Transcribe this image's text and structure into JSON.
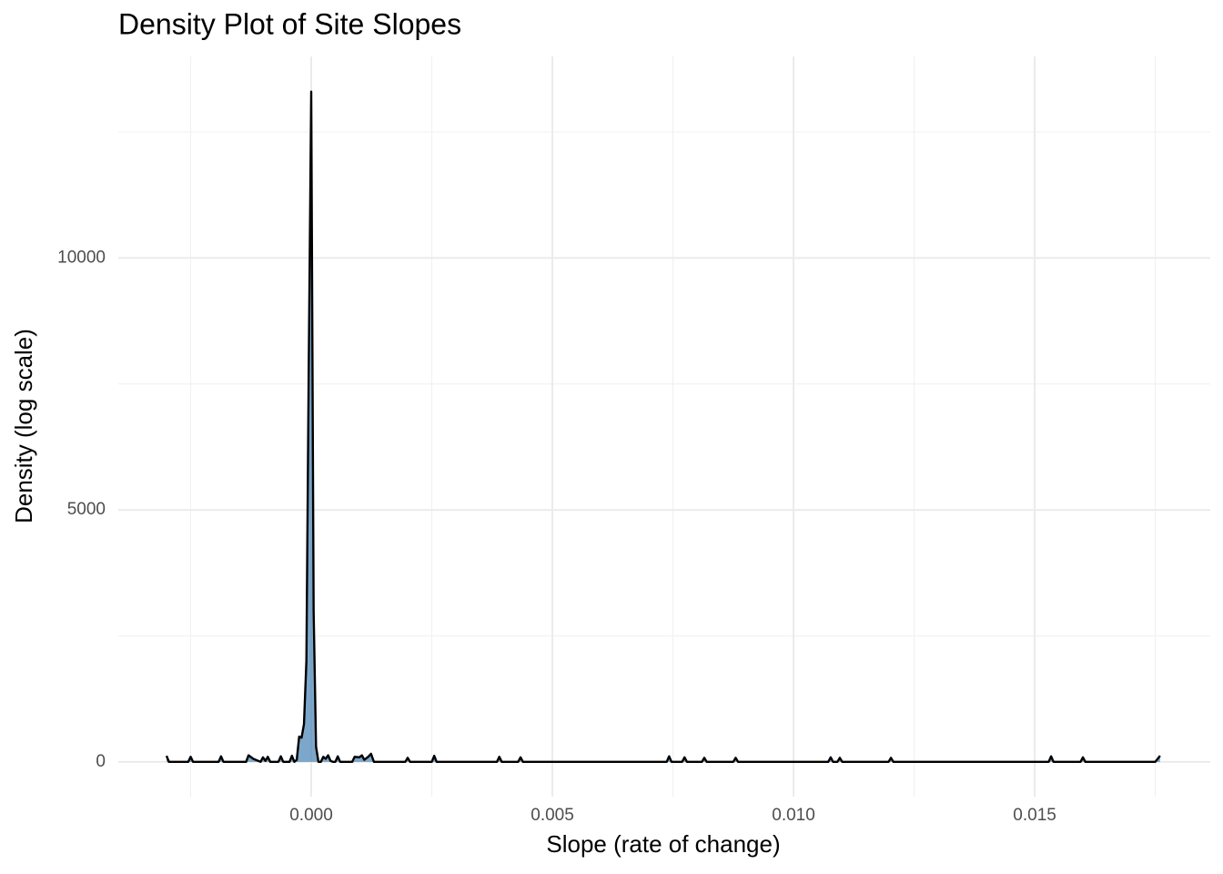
{
  "chart_data": {
    "type": "density",
    "title": "Density Plot of Site Slopes",
    "x_label": "Slope (rate of change)",
    "y_label": "Density (log scale)",
    "x": [
      -0.003,
      -0.00295,
      -0.00255,
      -0.0025,
      -0.00245,
      -0.00192,
      -0.00187,
      -0.00182,
      -0.00135,
      -0.0013,
      -0.0012,
      -0.00105,
      -0.001,
      -0.00095,
      -0.0009,
      -0.00085,
      -0.00068,
      -0.00063,
      -0.00058,
      -0.00045,
      -0.0004,
      -0.00035,
      -0.0003,
      -0.00025,
      -0.0002,
      -0.00015,
      -0.0001,
      -5e-05,
      0,
      5e-05,
      0.0001,
      0.00015,
      0.0002,
      0.00025,
      0.0003,
      0.00035,
      0.0004,
      0.00045,
      0.0005,
      0.00055,
      0.0006,
      0.00085,
      0.0009,
      0.001,
      0.00105,
      0.0011,
      0.00118,
      0.00124,
      0.0013,
      0.00195,
      0.002,
      0.00205,
      0.0025,
      0.00255,
      0.0026,
      0.00385,
      0.0039,
      0.00395,
      0.00429,
      0.00434,
      0.00439,
      0.00737,
      0.00742,
      0.00747,
      0.00769,
      0.00774,
      0.00779,
      0.0081,
      0.00815,
      0.0082,
      0.00875,
      0.0088,
      0.00885,
      0.01072,
      0.01077,
      0.01082,
      0.01091,
      0.01096,
      0.01101,
      0.01197,
      0.01202,
      0.01207,
      0.01529,
      0.01534,
      0.01539,
      0.01595,
      0.016,
      0.01605,
      0.0175,
      0.0176
    ],
    "values": [
      120,
      0,
      0,
      100,
      0,
      0,
      110,
      0,
      0,
      130,
      60,
      0,
      90,
      20,
      100,
      0,
      0,
      110,
      0,
      0,
      120,
      0,
      40,
      500,
      480,
      750,
      2000,
      8000,
      13300,
      3000,
      300,
      0,
      0,
      100,
      60,
      130,
      20,
      0,
      0,
      110,
      0,
      0,
      100,
      90,
      130,
      40,
      100,
      160,
      0,
      0,
      80,
      0,
      0,
      120,
      0,
      0,
      100,
      0,
      0,
      90,
      0,
      0,
      110,
      0,
      0,
      90,
      0,
      0,
      80,
      0,
      0,
      80,
      0,
      0,
      90,
      0,
      0,
      80,
      0,
      0,
      80,
      0,
      0,
      110,
      0,
      0,
      90,
      0,
      0,
      120
    ],
    "color": "#4682b4",
    "fill_opacity": 0.7,
    "line_color": "#000000",
    "xlim": [
      -0.004,
      0.01864
    ],
    "ylim": [
      -690,
      14000
    ],
    "xticks": [
      {
        "value": 0,
        "label": "0.000"
      },
      {
        "value": 0.005,
        "label": "0.005"
      },
      {
        "value": 0.01,
        "label": "0.010"
      },
      {
        "value": 0.015,
        "label": "0.015"
      }
    ],
    "yticks": [
      0,
      5000,
      10000
    ],
    "xminor": [
      -0.0025,
      0.0025,
      0.0075,
      0.0125,
      0.0175
    ],
    "yminor": [
      2500,
      7500,
      12500
    ],
    "grid": true
  }
}
